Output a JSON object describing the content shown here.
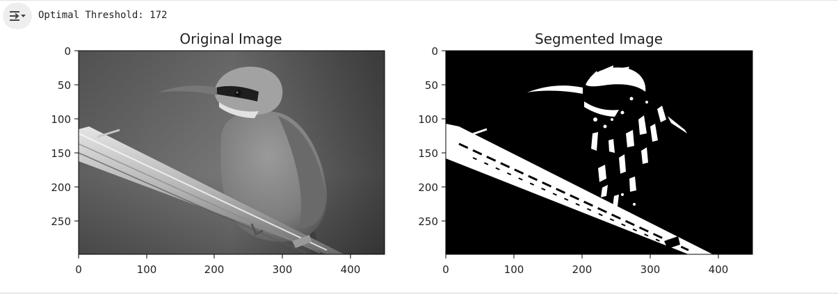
{
  "output": {
    "toggle_icon": "output-collapse-icon",
    "text": "Optimal Threshold: 172"
  },
  "figure": {
    "subplots": [
      {
        "title": "Original Image"
      },
      {
        "title": "Segmented Image"
      }
    ],
    "x_ticks": [
      "0",
      "100",
      "200",
      "300",
      "400"
    ],
    "y_ticks": [
      "0",
      "50",
      "100",
      "150",
      "200",
      "250"
    ]
  },
  "chart_data": [
    {
      "type": "image",
      "title": "Original Image",
      "colormap": "gray",
      "xlim": [
        0,
        450
      ],
      "ylim": [
        300,
        0
      ],
      "xticks": [
        0,
        100,
        200,
        300,
        400
      ],
      "yticks": [
        0,
        50,
        100,
        150,
        200,
        250
      ]
    },
    {
      "type": "image",
      "title": "Segmented Image",
      "colormap": "binary",
      "threshold": 172,
      "xlim": [
        0,
        450
      ],
      "ylim": [
        300,
        0
      ],
      "xticks": [
        0,
        100,
        200,
        300,
        400
      ],
      "yticks": [
        0,
        50,
        100,
        150,
        200,
        250
      ]
    }
  ],
  "colors": {
    "output_button_bg": "#eeeeee",
    "text": "#1f1f1f",
    "binary_foreground": "#ffffff",
    "binary_background": "#000000"
  }
}
